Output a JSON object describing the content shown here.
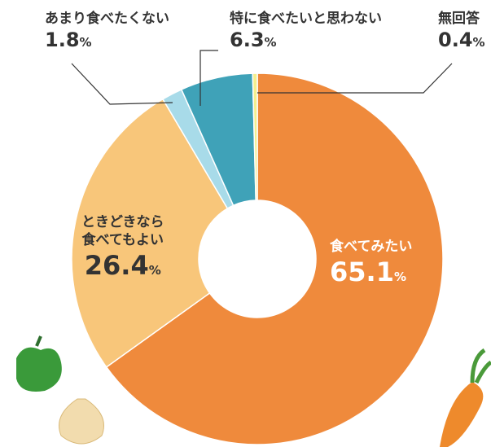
{
  "chart_data": {
    "type": "pie",
    "categories": [
      "食べてみたい",
      "ときどきなら\n食べてもよい",
      "あまり食べたくない",
      "特に食べたいと思わない",
      "無回答"
    ],
    "values": [
      65.1,
      26.4,
      1.8,
      6.3,
      0.4
    ],
    "unit": "%",
    "colors": [
      "#ef8a3c",
      "#f8c67a",
      "#a8dbe9",
      "#3fa2b8",
      "#f4ef8e"
    ]
  }
}
